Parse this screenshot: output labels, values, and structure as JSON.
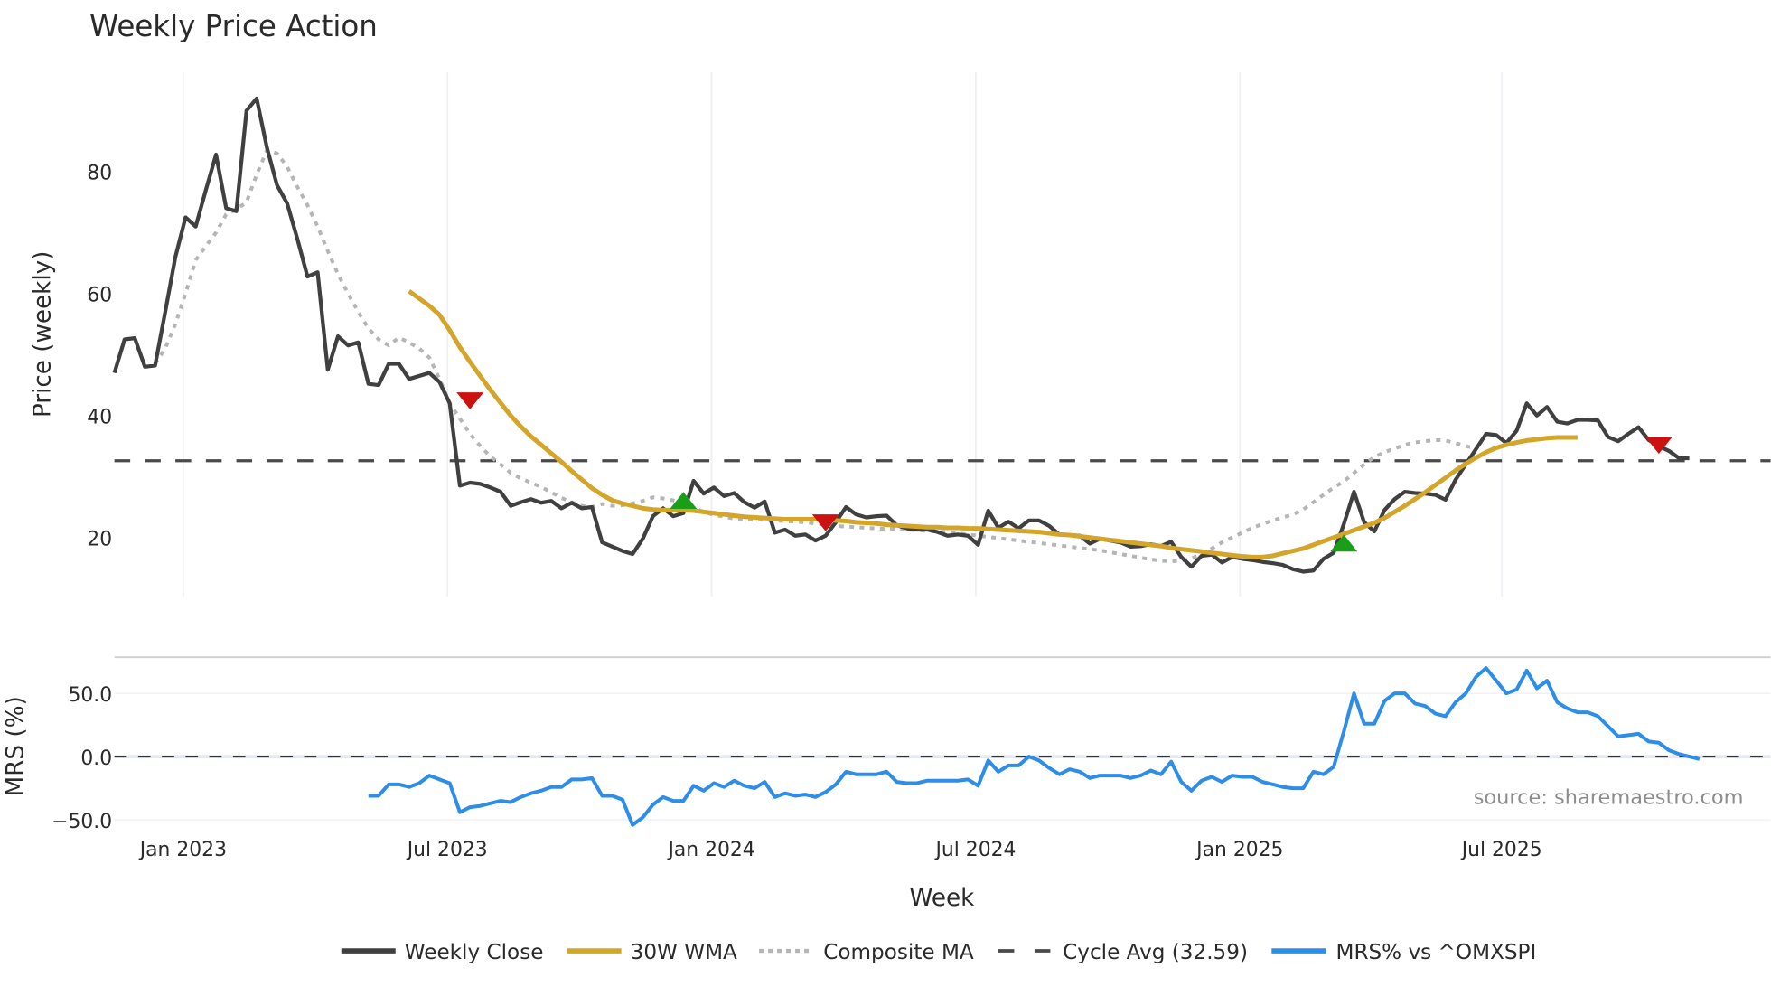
{
  "chart_data": [
    {
      "panel": "price",
      "type": "line",
      "title": "Weekly Price Action",
      "xlabel": "Week",
      "ylabel": "Price (weekly)",
      "yticks": [
        20,
        40,
        60,
        80
      ],
      "ylim": [
        10,
        95
      ],
      "xticks": [
        "Jan 2023",
        "Jul 2023",
        "Jan 2024",
        "Jul 2024",
        "Jan 2025",
        "Jul 2025"
      ],
      "grid": {
        "x": true,
        "y": false
      },
      "start_week": "2022-11-14",
      "series": [
        {
          "name": "Weekly Close",
          "color": "#404040",
          "style": "solid",
          "values": [
            47,
            52.5,
            52.7,
            48,
            48.2,
            57,
            66,
            72.5,
            71,
            77,
            82.8,
            74,
            73.5,
            90,
            92,
            84,
            77.8,
            74.8,
            69,
            62.8,
            63.5,
            47.5,
            53,
            51.5,
            52,
            45.2,
            45,
            48.5,
            48.5,
            46,
            46.5,
            47,
            45.5,
            42,
            28.5,
            29,
            28.8,
            28.2,
            27.5,
            25.2,
            25.8,
            26.3,
            25.7,
            26,
            24.8,
            25.7,
            24.8,
            25,
            19.2,
            18.5,
            17.8,
            17.3,
            19.8,
            23.5,
            24.8,
            23.5,
            24,
            29.3,
            27.2,
            28.2,
            26.8,
            27.3,
            25.8,
            24.9,
            25.9,
            20.8,
            21.3,
            20.3,
            20.5,
            19.5,
            20.3,
            22.5,
            25,
            23.8,
            23.3,
            23.5,
            23.6,
            22,
            21.5,
            21.3,
            21.3,
            20.9,
            20.3,
            20.5,
            20.3,
            18.8,
            24.4,
            21.6,
            22.6,
            21.5,
            22.8,
            22.8,
            21.9,
            20.5,
            20.4,
            20.3,
            19,
            19.8,
            19.5,
            19.2,
            18.5,
            18.6,
            18.9,
            18.6,
            19.3,
            16.8,
            15.2,
            17,
            17.2,
            15.9,
            16.8,
            16.5,
            16.3,
            16,
            15.8,
            15.5,
            14.8,
            14.4,
            14.6,
            16.5,
            17.5,
            22.2,
            27.5,
            22.5,
            21,
            24.5,
            26.3,
            27.5,
            27.3,
            27.2,
            27,
            26.2,
            29.5,
            32,
            34.5,
            37,
            36.8,
            35.5,
            37.5,
            42,
            40,
            41.4,
            39,
            38.7,
            39.3,
            39.3,
            39.2,
            36.5,
            35.8,
            37,
            38.1,
            36,
            35,
            34.2,
            33,
            33
          ]
        },
        {
          "name": "30W WMA",
          "color": "#D4A52B",
          "style": "solid",
          "start_index": 29,
          "values": [
            60.4,
            59.2,
            58,
            56.5,
            54,
            51.2,
            48.8,
            46.5,
            44.2,
            42.1,
            40,
            38.2,
            36.6,
            35.2,
            33.8,
            32.4,
            30.9,
            29.5,
            28.1,
            27,
            26.1,
            25.6,
            25.2,
            24.8,
            24.6,
            24.5,
            24.5,
            24.5,
            24.4,
            24.2,
            24,
            23.8,
            23.6,
            23.4,
            23.3,
            23.2,
            23.1,
            23.0,
            23.0,
            23.0,
            23.0,
            22.9,
            22.8,
            22.7,
            22.5,
            22.4,
            22.3,
            22.1,
            22.0,
            21.9,
            21.8,
            21.7,
            21.7,
            21.6,
            21.6,
            21.5,
            21.5,
            21.4,
            21.3,
            21.2,
            21.1,
            21.0,
            20.9,
            20.7,
            20.5,
            20.4,
            20.2,
            20.0,
            19.8,
            19.6,
            19.4,
            19.2,
            19.0,
            18.8,
            18.6,
            18.3,
            18.1,
            17.9,
            17.7,
            17.5,
            17.3,
            17.1,
            16.9,
            16.8,
            16.8,
            17.0,
            17.4,
            17.8,
            18.2,
            18.8,
            19.4,
            20.0,
            20.6,
            21.2,
            21.8,
            22.4,
            23.2,
            24.2,
            25.2,
            26.3,
            27.4,
            28.6,
            29.8,
            31.0,
            32.1,
            33.1,
            34.0,
            34.7,
            35.2,
            35.6,
            35.9,
            36.1,
            36.3,
            36.4,
            36.4,
            36.4
          ]
        },
        {
          "name": "Composite MA",
          "color": "#b5b5b5",
          "style": "dotted",
          "start_index": 4,
          "values": [
            48.5,
            51,
            55,
            60,
            65.5,
            67.8,
            70,
            73,
            73.8,
            75,
            79.5,
            83.5,
            83,
            80.8,
            77.5,
            74.5,
            71,
            67,
            63.2,
            60,
            57,
            54.3,
            52.5,
            51.5,
            52.8,
            52,
            51,
            49.5,
            46,
            42,
            39.5,
            37,
            35,
            33.3,
            32,
            30.6,
            29.7,
            29,
            28.3,
            27.4,
            26.5,
            25.8,
            25.2,
            25,
            25.5,
            25.2,
            25.3,
            25.6,
            26,
            26.6,
            26.4,
            26.1,
            25.7,
            24.9,
            24.2,
            23.7,
            23.4,
            23.1,
            23.0,
            22.9,
            22.9,
            22.8,
            22.7,
            22.6,
            22.5,
            22.3,
            22.1,
            21.9,
            21.8,
            21.7,
            21.6,
            21.5,
            21.4,
            21.4,
            21.3,
            21.2,
            21.1,
            21.0,
            20.9,
            20.7,
            20.5,
            20.3,
            20.1,
            19.9,
            19.7,
            19.5,
            19.3,
            19.1,
            18.9,
            18.7,
            18.5,
            18.3,
            18.1,
            17.9,
            17.6,
            17.3,
            17.0,
            16.7,
            16.4,
            16.2,
            16.1,
            16.2,
            16.6,
            17.2,
            18.2,
            19.2,
            20,
            20.8,
            21.6,
            22.2,
            22.8,
            23.3,
            23.8,
            24.6,
            25.8,
            27,
            28.2,
            29.2,
            30.6,
            32,
            33.2,
            34,
            34.6,
            35.2,
            35.6,
            35.8,
            36,
            35.9,
            35.5,
            35,
            34.6
          ]
        },
        {
          "name": "Cycle Avg (32.59)",
          "color": "#4a4a4a",
          "style": "dashed",
          "value": 32.59
        }
      ],
      "annotations": [
        {
          "type": "sell_marker",
          "color": "#cc1111",
          "week_index": 35,
          "price": 42.5
        },
        {
          "type": "buy_marker",
          "color": "#1a9e1a",
          "week_index": 56,
          "price": 26
        },
        {
          "type": "sell_marker",
          "color": "#cc1111",
          "week_index": 70,
          "price": 22.5
        },
        {
          "type": "buy_marker",
          "color": "#1a9e1a",
          "week_index": 121,
          "price": 19
        },
        {
          "type": "sell_marker",
          "color": "#cc1111",
          "week_index": 152,
          "price": 35.2
        }
      ]
    },
    {
      "panel": "mrs",
      "type": "line",
      "ylabel": "MRS (%)",
      "yticks": [
        "50.0",
        "0.0",
        "−50.0"
      ],
      "ylim": [
        -60,
        80
      ],
      "xticks": [
        "Jan 2023",
        "Jul 2023",
        "Jan 2024",
        "Jul 2024",
        "Jan 2025",
        "Jul 2025"
      ],
      "series": [
        {
          "name": "MRS% vs ^OMXSPI",
          "color": "#2E8DE6",
          "style": "solid",
          "start_index": 25,
          "values": [
            -31,
            -31,
            -22,
            -22,
            -24,
            -21,
            -15,
            -18,
            -21,
            -44,
            -40,
            -39,
            -37,
            -35,
            -36,
            -32,
            -29,
            -27,
            -24,
            -24,
            -18,
            -18,
            -17,
            -31,
            -31,
            -34,
            -54,
            -48,
            -38,
            -32,
            -35,
            -35,
            -23,
            -27,
            -21,
            -24,
            -19,
            -23,
            -25,
            -20,
            -32,
            -29,
            -31,
            -30,
            -32,
            -28,
            -22,
            -12,
            -14,
            -14,
            -14,
            -12,
            -20,
            -21,
            -21,
            -19,
            -19,
            -19,
            -19,
            -18,
            -23,
            -3,
            -12,
            -7,
            -7,
            0,
            -3,
            -9,
            -14,
            -10,
            -12,
            -17,
            -15,
            -15,
            -15,
            -17,
            -15,
            -11,
            -14,
            -4,
            -20,
            -27,
            -19,
            -16,
            -20,
            -15,
            -16,
            -16,
            -20,
            -22,
            -24,
            -25,
            -25,
            -12,
            -14,
            -8,
            20,
            50,
            26,
            26,
            44,
            50,
            50,
            42,
            40,
            34,
            32,
            43,
            50,
            63,
            70,
            60,
            50,
            53,
            68,
            54,
            60,
            43,
            38,
            35,
            35,
            32,
            24,
            16,
            17,
            18,
            12,
            11,
            5,
            2,
            0,
            -2
          ]
        },
        {
          "name": "zero-line",
          "color": "#333333",
          "style": "dashed",
          "value": 0
        }
      ]
    }
  ],
  "title": "Weekly Price Action",
  "axes": {
    "price_ylabel": "Price (weekly)",
    "price_yticks": [
      "80",
      "60",
      "40",
      "20"
    ],
    "mrs_ylabel": "MRS (%)",
    "mrs_yticks": [
      "50.0",
      "0.0",
      "−50.0"
    ],
    "xlabel": "Week",
    "xticks": [
      "Jan 2023",
      "Jul 2023",
      "Jan 2024",
      "Jul 2024",
      "Jan 2025",
      "Jul 2025"
    ]
  },
  "source_label": "source: sharemaestro.com",
  "legend": [
    {
      "label": "Weekly Close",
      "color": "#404040",
      "style": "solid"
    },
    {
      "label": "30W WMA",
      "color": "#D4A52B",
      "style": "solid"
    },
    {
      "label": "Composite MA",
      "color": "#b5b5b5",
      "style": "dotted"
    },
    {
      "label": "Cycle Avg (32.59)",
      "color": "#4a4a4a",
      "style": "dashed"
    },
    {
      "label": "MRS% vs ^OMXSPI",
      "color": "#2E8DE6",
      "style": "solid"
    }
  ]
}
